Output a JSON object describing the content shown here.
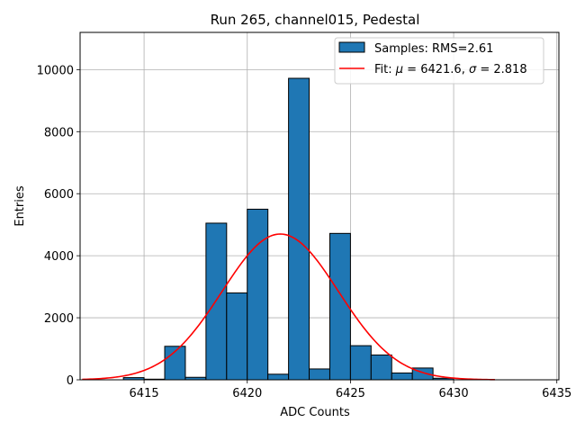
{
  "chart_data": {
    "type": "bar",
    "title": "Run 265, channel015, Pedestal",
    "xlabel": "ADC Counts",
    "ylabel": "Entries",
    "xlim": [
      6411.9,
      6435.1
    ],
    "ylim": [
      0,
      11200
    ],
    "xticks": [
      6415,
      6420,
      6425,
      6430,
      6435
    ],
    "yticks": [
      0,
      2000,
      4000,
      6000,
      8000,
      10000
    ],
    "grid": true,
    "legend_position": "upper right",
    "bin_width": 1,
    "bins": [
      {
        "left": 6414,
        "count": 70
      },
      {
        "left": 6415,
        "count": 20
      },
      {
        "left": 6416,
        "count": 1080
      },
      {
        "left": 6417,
        "count": 80
      },
      {
        "left": 6418,
        "count": 5050
      },
      {
        "left": 6419,
        "count": 2800
      },
      {
        "left": 6420,
        "count": 5500
      },
      {
        "left": 6421,
        "count": 180
      },
      {
        "left": 6422,
        "count": 9720
      },
      {
        "left": 6423,
        "count": 350
      },
      {
        "left": 6424,
        "count": 4720
      },
      {
        "left": 6425,
        "count": 1100
      },
      {
        "left": 6426,
        "count": 800
      },
      {
        "left": 6427,
        "count": 220
      },
      {
        "left": 6428,
        "count": 380
      },
      {
        "left": 6429,
        "count": 50
      }
    ],
    "fit": {
      "mu": 6421.6,
      "sigma": 2.818,
      "amplitude": 4700,
      "x_range": [
        6412,
        6432
      ]
    },
    "colors": {
      "bar": "#1f77b4",
      "bar_edge": "#000000",
      "fit": "#ff0000",
      "grid": "#b0b0b0"
    },
    "legend": [
      {
        "label": "Samples: RMS=2.61",
        "kind": "patch"
      },
      {
        "label_prefix": "Fit: ",
        "mu_symbol": "μ",
        "mu_text": " = 6421.6, ",
        "sigma_symbol": "σ",
        "sigma_text": " = 2.818",
        "kind": "line"
      }
    ]
  }
}
